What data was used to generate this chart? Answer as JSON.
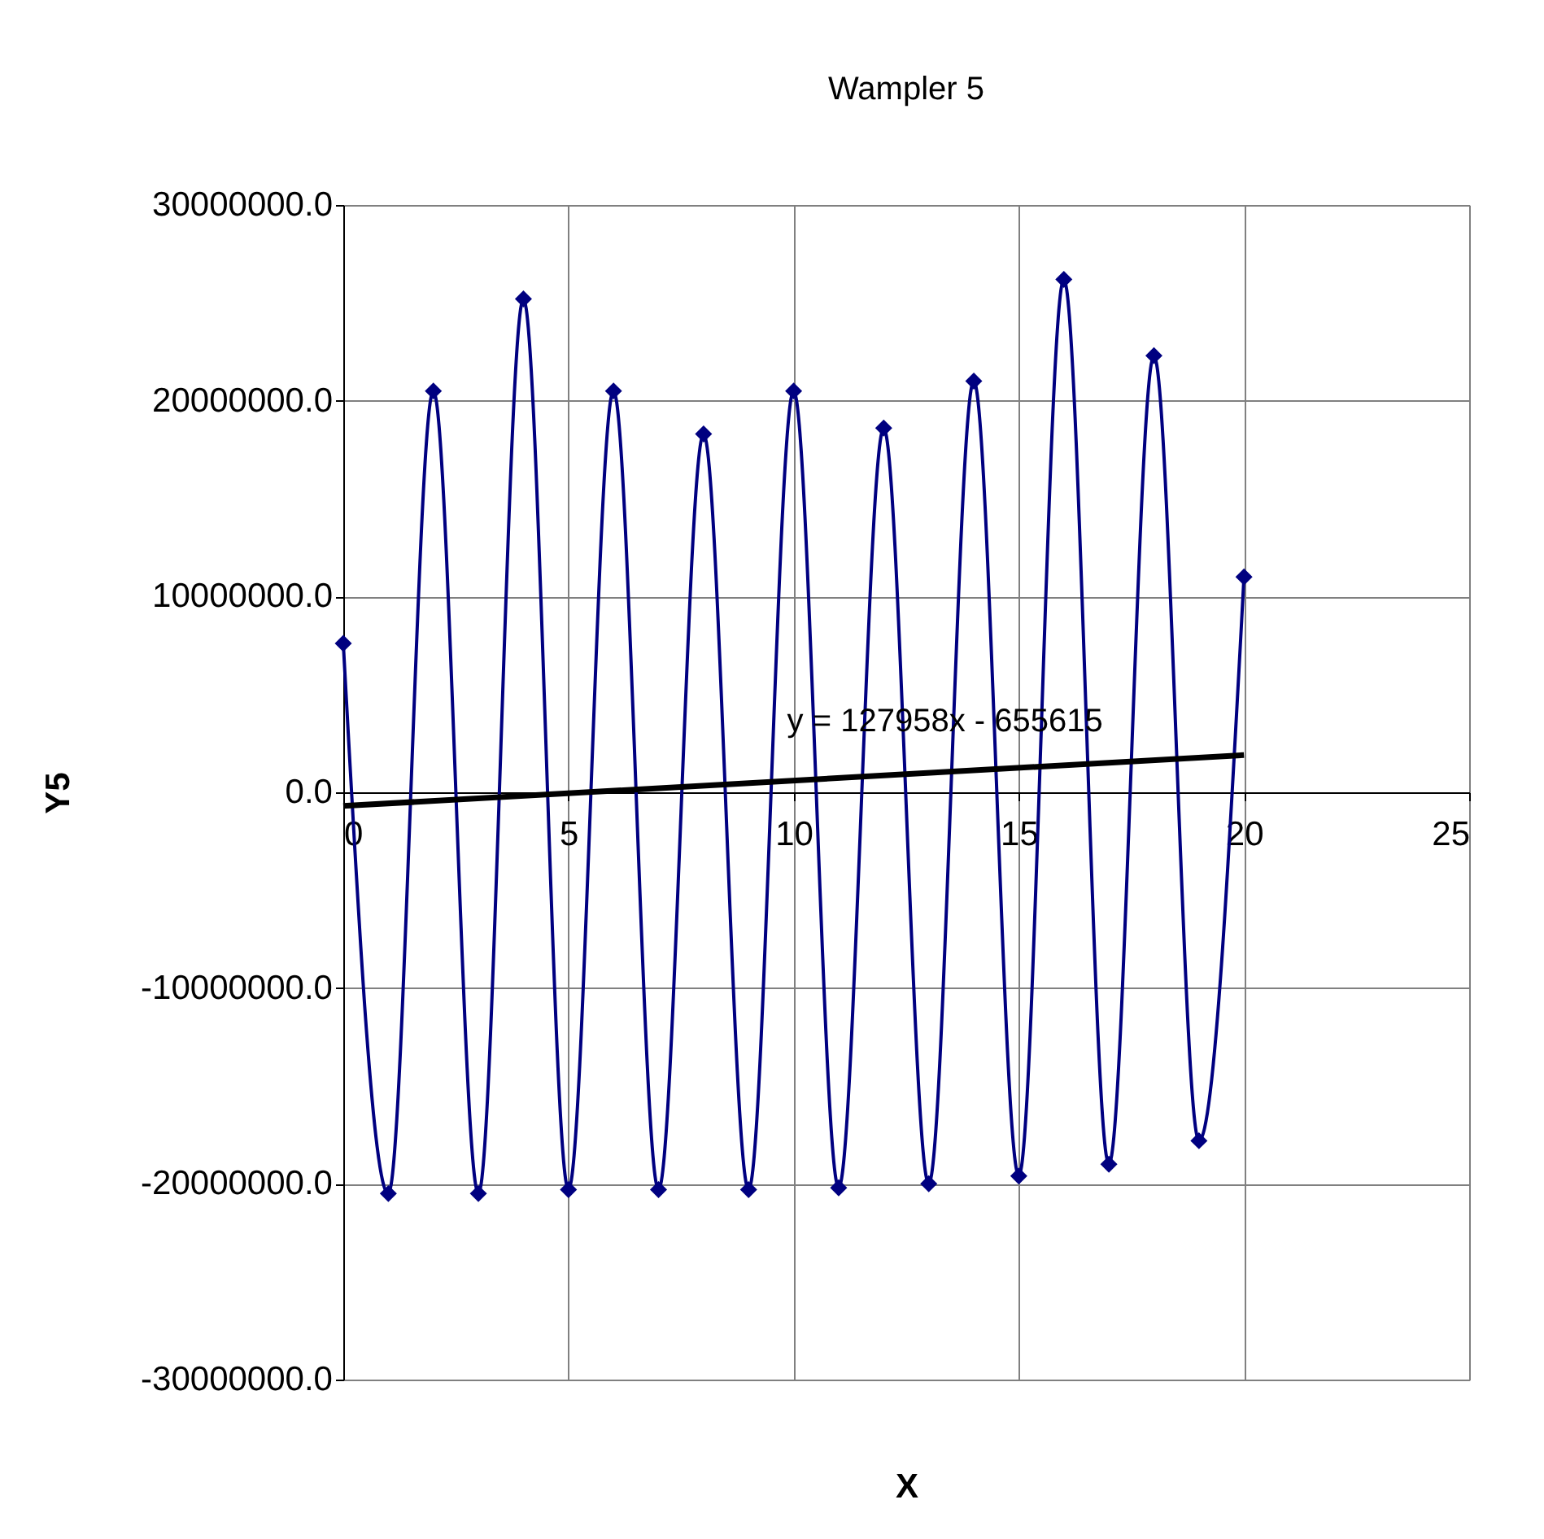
{
  "chart_data": {
    "type": "line",
    "title": "Wampler 5",
    "xlabel": "X",
    "ylabel": "Y5",
    "xlim": [
      0,
      25
    ],
    "xticks": [
      0,
      5,
      10,
      15,
      20,
      25
    ],
    "ylim": [
      -30000000,
      30000000
    ],
    "yticks": [
      {
        "value": -30000000,
        "label": "-30000000.0"
      },
      {
        "value": -20000000,
        "label": "-20000000.0"
      },
      {
        "value": -10000000,
        "label": "-10000000.0"
      },
      {
        "value": 0,
        "label": "0.0"
      },
      {
        "value": 10000000,
        "label": "10000000.0"
      },
      {
        "value": 20000000,
        "label": "20000000.0"
      },
      {
        "value": 30000000,
        "label": "30000000.0"
      }
    ],
    "grid": true,
    "series": [
      {
        "color": "#000080",
        "marker": "diamond",
        "x": [
          0,
          1,
          2,
          3,
          4,
          5,
          6,
          7,
          8,
          9,
          10,
          11,
          12,
          13,
          14,
          15,
          16,
          17,
          18,
          19,
          20
        ],
        "values": [
          7600000,
          -20500000,
          20500000,
          -20500000,
          25200000,
          -20300000,
          20500000,
          -20300000,
          18300000,
          -20300000,
          20500000,
          -20200000,
          18600000,
          -20000000,
          21000000,
          -19600000,
          26200000,
          -19000000,
          22300000,
          -17800000,
          11000000
        ]
      },
      {
        "type": "line",
        "color": "#000000",
        "marker": "none",
        "x": [
          0,
          20
        ],
        "values": [
          -700000,
          1900000
        ]
      }
    ],
    "annotations": [
      "y = 127958x - 655615"
    ]
  }
}
